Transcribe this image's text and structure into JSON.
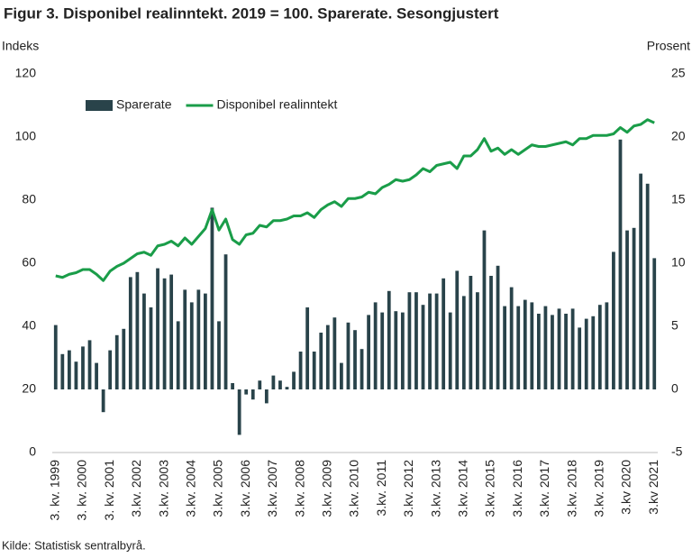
{
  "chart_data": {
    "type": "bar-line",
    "title": "Figur 3. Disponibel realinntekt.  2019 = 100. Sparerate. Sesongjustert",
    "y_label": "Indeks",
    "y2_label": "Prosent",
    "source": "Kilde: Statistisk sentralbyrå.",
    "categories": [
      "3. kv. 1999",
      null,
      null,
      null,
      "3. kv. 2000",
      null,
      null,
      null,
      "3. kv. 2001",
      null,
      null,
      null,
      "3.kv. 2002",
      null,
      null,
      null,
      "3.kv. 2003",
      null,
      null,
      null,
      "3.kv. 2004",
      null,
      null,
      null,
      "3.kv. 2005",
      null,
      null,
      null,
      "3.kv. 2006",
      null,
      null,
      null,
      "3.kv. 2007",
      null,
      null,
      null,
      "3.kv. 2008",
      null,
      null,
      null,
      "3.kv. 2009",
      null,
      null,
      null,
      "3.kv. 2010",
      null,
      null,
      null,
      "3.kv. 2011",
      null,
      null,
      null,
      "3.kv. 2012",
      null,
      null,
      null,
      "3.kv. 2013",
      null,
      null,
      null,
      "3.kv. 2014",
      null,
      null,
      null,
      "3.kv. 2015",
      null,
      null,
      null,
      "3.kv. 2016",
      null,
      null,
      null,
      "3.kv. 2017",
      null,
      null,
      null,
      "3.kv. 2018",
      null,
      null,
      null,
      "3.kv. 2019",
      null,
      null,
      null,
      "3.kv 2020",
      null,
      null,
      null,
      "3.kv 2021"
    ],
    "series": [
      {
        "name": "Sparerate",
        "kind": "bar",
        "axis": "y2",
        "color": "#29434a",
        "values": [
          5.1,
          2.8,
          3.1,
          2.2,
          3.4,
          3.9,
          2.1,
          -1.8,
          3.1,
          4.3,
          4.8,
          8.9,
          9.3,
          7.6,
          6.5,
          9.6,
          8.8,
          9.1,
          5.4,
          7.9,
          6.9,
          7.9,
          7.6,
          14.4,
          5.4,
          10.7,
          0.5,
          -3.6,
          -0.4,
          -0.8,
          0.7,
          -1.1,
          1.1,
          0.7,
          0.2,
          1.4,
          3.0,
          6.5,
          3.0,
          4.5,
          5.1,
          5.7,
          2.1,
          5.3,
          4.7,
          3.2,
          5.9,
          6.9,
          6.1,
          7.8,
          6.2,
          6.1,
          7.7,
          7.7,
          6.7,
          7.6,
          7.6,
          8.8,
          6.1,
          9.4,
          7.4,
          9.0,
          7.7,
          12.6,
          9.0,
          9.8,
          6.6,
          8.1,
          6.6,
          7.1,
          6.9,
          6.0,
          6.6,
          5.9,
          6.4,
          6.0,
          6.4,
          4.9,
          5.6,
          5.8,
          6.7,
          6.9,
          10.9,
          19.8,
          12.6,
          12.8,
          17.1,
          16.3,
          10.4
        ]
      },
      {
        "name": "Disponibel realinntekt",
        "kind": "line",
        "axis": "y",
        "color": "#1a9d49",
        "values": [
          56,
          55.5,
          56.5,
          57,
          58,
          58,
          56.5,
          54.5,
          57.5,
          59,
          60,
          61.5,
          63,
          63.5,
          62.5,
          65.5,
          66,
          67,
          65.5,
          68,
          66,
          68.5,
          71,
          77,
          70.5,
          74,
          67.5,
          66,
          69,
          69.5,
          72,
          71.5,
          73.5,
          73.5,
          74,
          75,
          75,
          76,
          74.5,
          77,
          78.5,
          79.5,
          78,
          80.5,
          80.5,
          81,
          82.5,
          82,
          84,
          85,
          86.5,
          86,
          86.5,
          88,
          90,
          89,
          91,
          91.5,
          92,
          90,
          94,
          94,
          96,
          99.5,
          95.5,
          96.5,
          94.5,
          96,
          94.5,
          96,
          97.5,
          97,
          97,
          97.5,
          98,
          98.5,
          97.5,
          99.5,
          99.5,
          100.5,
          100.5,
          100.5,
          101,
          103,
          101.5,
          103.5,
          104,
          105.5,
          104.5
        ]
      }
    ],
    "ylim": [
      0,
      120
    ],
    "yticks": [
      0,
      20,
      40,
      60,
      80,
      100,
      120
    ],
    "y2lim": [
      -5,
      25
    ],
    "y2ticks": [
      -5,
      0,
      5,
      10,
      15,
      20,
      25
    ],
    "legend": "top-left"
  }
}
